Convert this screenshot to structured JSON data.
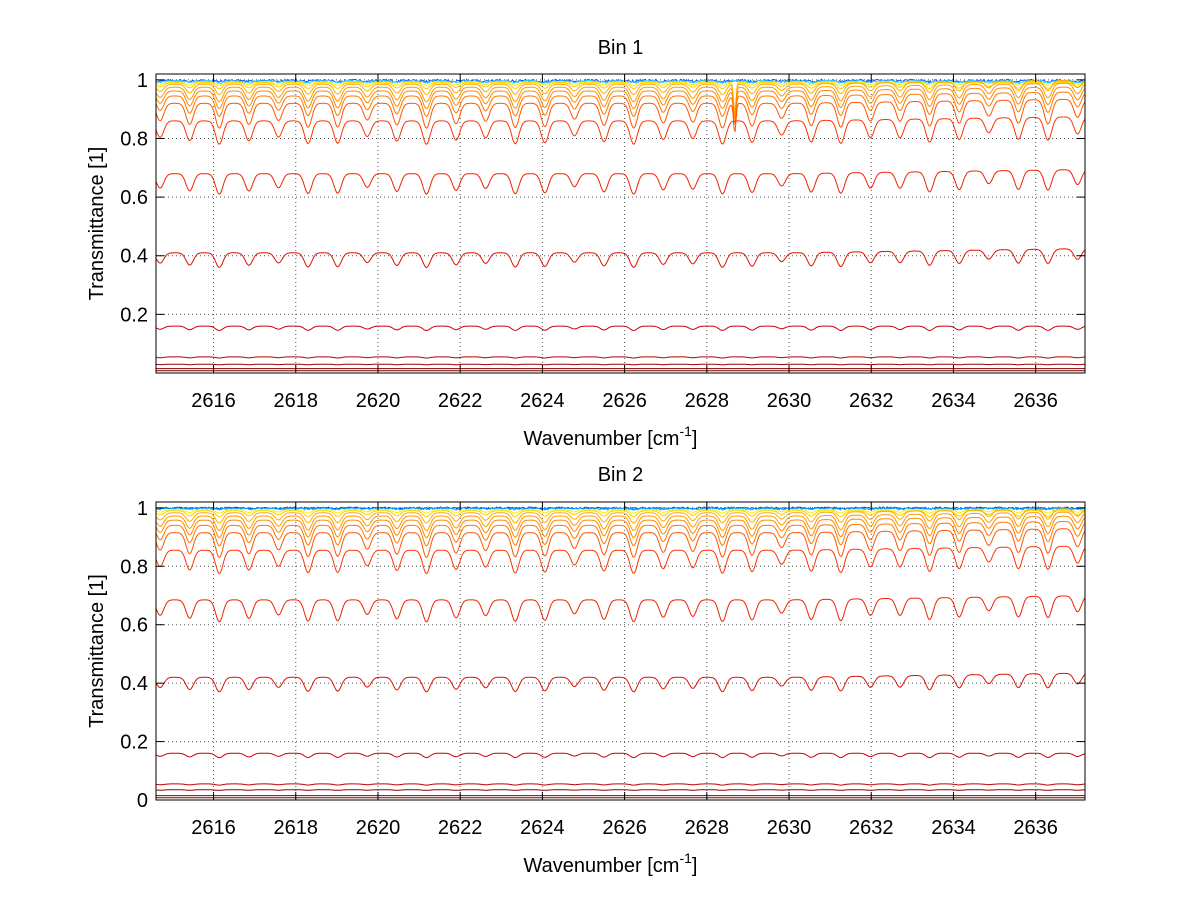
{
  "chart_data": [
    {
      "type": "line",
      "title": "Bin 1",
      "xlabel": "Wavenumber [cm",
      "xlabel_sup": "-1",
      "xlabel_end": "]",
      "ylabel": "Transmittance [1]",
      "xlim": [
        2614.6,
        2637.2
      ],
      "ylim": [
        0.0,
        1.02
      ],
      "grid": true,
      "xticks": [
        "2616",
        "2618",
        "2620",
        "2622",
        "2624",
        "2626",
        "2628",
        "2630",
        "2632",
        "2634",
        "2636"
      ],
      "yticks": [
        "0.2",
        "0.4",
        "0.6",
        "0.8",
        "1"
      ],
      "series": [
        {
          "color": "#0055ff",
          "baseline": 0.998,
          "depth": 0.004,
          "noise": 0.004
        },
        {
          "color": "#33ccff",
          "baseline": 0.996,
          "depth": 0.006,
          "noise": 0.003
        },
        {
          "color": "#ffee00",
          "baseline": 0.993,
          "depth": 0.012,
          "noise": 0.0
        },
        {
          "color": "#ffcc00",
          "baseline": 0.99,
          "depth": 0.02,
          "noise": 0.0
        },
        {
          "color": "#ffaa00",
          "baseline": 0.985,
          "depth": 0.035,
          "noise": 0.0
        },
        {
          "color": "#ff9900",
          "baseline": 0.975,
          "depth": 0.05,
          "noise": 0.0
        },
        {
          "color": "#ff8800",
          "baseline": 0.962,
          "depth": 0.06,
          "noise": 0.0
        },
        {
          "color": "#ff7700",
          "baseline": 0.945,
          "depth": 0.07,
          "noise": 0.0
        },
        {
          "color": "#ff5500",
          "baseline": 0.92,
          "depth": 0.085,
          "noise": 0.0
        },
        {
          "color": "#ff3300",
          "baseline": 0.86,
          "depth": 0.08,
          "noise": 0.0
        },
        {
          "color": "#ee2200",
          "baseline": 0.68,
          "depth": 0.07,
          "noise": 0.0
        },
        {
          "color": "#dd1100",
          "baseline": 0.41,
          "depth": 0.05,
          "noise": 0.0
        },
        {
          "color": "#cc0000",
          "baseline": 0.16,
          "depth": 0.015,
          "noise": 0.0
        },
        {
          "color": "#bb0000",
          "baseline": 0.055,
          "depth": 0.004,
          "noise": 0.0
        },
        {
          "color": "#990000",
          "baseline": 0.03,
          "depth": 0.002,
          "noise": 0.0
        },
        {
          "color": "#880000",
          "baseline": 0.015,
          "depth": 0.0,
          "noise": 0.0
        },
        {
          "color": "#770000",
          "baseline": 0.008,
          "depth": 0.0,
          "noise": 0.0
        }
      ]
    },
    {
      "type": "line",
      "title": "Bin 2",
      "xlabel": "Wavenumber [cm",
      "xlabel_sup": "-1",
      "xlabel_end": "]",
      "ylabel": "Transmittance [1]",
      "xlim": [
        2614.6,
        2637.2
      ],
      "ylim": [
        0.0,
        1.02
      ],
      "grid": true,
      "xticks": [
        "2616",
        "2618",
        "2620",
        "2622",
        "2624",
        "2626",
        "2628",
        "2630",
        "2632",
        "2634",
        "2636"
      ],
      "yticks": [
        "0",
        "0.2",
        "0.4",
        "0.6",
        "0.8",
        "1"
      ],
      "series": [
        {
          "color": "#0044cc",
          "baseline": 1.0,
          "depth": 0.002,
          "noise": 0.003
        },
        {
          "color": "#00aaff",
          "baseline": 0.998,
          "depth": 0.003,
          "noise": 0.003
        },
        {
          "color": "#ffee00",
          "baseline": 0.994,
          "depth": 0.012,
          "noise": 0.0
        },
        {
          "color": "#ffcc00",
          "baseline": 0.99,
          "depth": 0.02,
          "noise": 0.0
        },
        {
          "color": "#ffaa00",
          "baseline": 0.983,
          "depth": 0.035,
          "noise": 0.0
        },
        {
          "color": "#ff9900",
          "baseline": 0.972,
          "depth": 0.05,
          "noise": 0.0
        },
        {
          "color": "#ff8800",
          "baseline": 0.958,
          "depth": 0.06,
          "noise": 0.0
        },
        {
          "color": "#ff7700",
          "baseline": 0.94,
          "depth": 0.07,
          "noise": 0.0
        },
        {
          "color": "#ff5500",
          "baseline": 0.915,
          "depth": 0.085,
          "noise": 0.0
        },
        {
          "color": "#ff3300",
          "baseline": 0.855,
          "depth": 0.08,
          "noise": 0.0
        },
        {
          "color": "#ee2200",
          "baseline": 0.685,
          "depth": 0.075,
          "noise": 0.0
        },
        {
          "color": "#dd1100",
          "baseline": 0.42,
          "depth": 0.05,
          "noise": 0.0
        },
        {
          "color": "#cc0000",
          "baseline": 0.16,
          "depth": 0.015,
          "noise": 0.0
        },
        {
          "color": "#bb0000",
          "baseline": 0.055,
          "depth": 0.004,
          "noise": 0.0
        },
        {
          "color": "#990000",
          "baseline": 0.035,
          "depth": 0.002,
          "noise": 0.0
        },
        {
          "color": "#880000",
          "baseline": 0.015,
          "depth": 0.0,
          "noise": 0.0
        },
        {
          "color": "#770000",
          "baseline": 0.008,
          "depth": 0.0,
          "noise": 0.0
        }
      ]
    }
  ]
}
